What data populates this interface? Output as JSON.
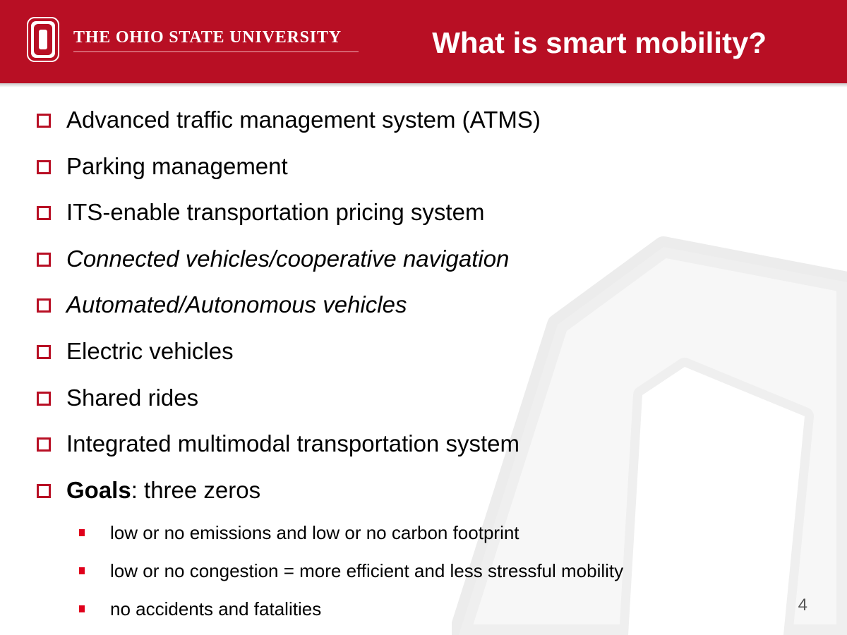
{
  "header": {
    "university_name": "THE OHIO STATE UNIVERSITY",
    "title": "What is smart mobility?",
    "brand_color": "#b80f24",
    "logo_icon": "block-o-logo-icon"
  },
  "bullets": [
    {
      "text": "Advanced traffic management system (ATMS)"
    },
    {
      "text": "Parking management"
    },
    {
      "text": "ITS-enable transportation pricing system"
    },
    {
      "text": "Connected vehicles/cooperative navigation",
      "style": "italic"
    },
    {
      "text": "Automated/Autonomous vehicles",
      "style": "italic"
    },
    {
      "text": "Electric vehicles"
    },
    {
      "text": "Shared rides"
    },
    {
      "text": "Integrated multimodal transportation system"
    },
    {
      "bold_text": "Goals",
      "text": ": three zeros"
    }
  ],
  "sub_bullets": [
    {
      "text": "low or no emissions and low or no carbon footprint"
    },
    {
      "text": "low or no congestion = more efficient and less stressful mobility"
    },
    {
      "text": "no accidents and fatalities"
    }
  ],
  "bullet_icon": "checkbox-square-icon",
  "sub_bullet_icon": "red-square-icon",
  "watermark_icon": "block-o-watermark-icon",
  "page_number": "4"
}
